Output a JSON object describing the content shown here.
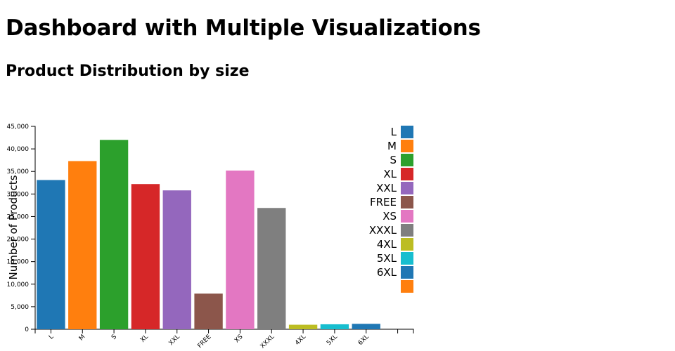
{
  "page": {
    "title": "Dashboard with Multiple Visualizations",
    "subtitle": "Product Distribution by size"
  },
  "chart_data": {
    "type": "bar",
    "title": "Product Distribution by size",
    "xlabel": "",
    "ylabel": "Number of Products",
    "categories": [
      "L",
      "M",
      "S",
      "XL",
      "XXL",
      "FREE",
      "XS",
      "XXXL",
      "4XL",
      "5XL",
      "6XL",
      ""
    ],
    "values": [
      33100,
      37300,
      42000,
      32200,
      30800,
      7900,
      35200,
      26900,
      1000,
      1100,
      1200,
      0
    ],
    "colors": [
      "#1f77b4",
      "#ff7f0e",
      "#2ca02c",
      "#d62728",
      "#9467bd",
      "#8c564b",
      "#e377c2",
      "#7f7f7f",
      "#bcbd22",
      "#17becf",
      "#1f77b4",
      "#ff7f0e"
    ],
    "ylim": [
      0,
      45000
    ],
    "yticks": [
      0,
      5000,
      10000,
      15000,
      20000,
      25000,
      30000,
      35000,
      40000,
      45000
    ],
    "ytick_labels": [
      "0",
      "5,000",
      "10,000",
      "15,000",
      "20,000",
      "25,000",
      "30,000",
      "35,000",
      "40,000",
      "45,000"
    ],
    "grid": false,
    "legend": "top-right"
  }
}
